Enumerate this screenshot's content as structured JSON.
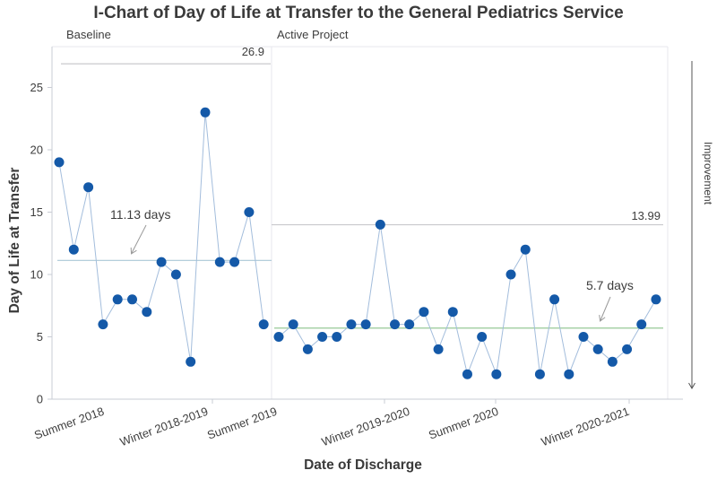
{
  "title": "I-Chart of Day of Life at Transfer to the General Pediatrics Service",
  "chart_data": {
    "type": "line",
    "subtype": "individuals-control-chart",
    "title": "I-Chart of Day of Life at Transfer to the General Pediatrics Service",
    "xlabel": "Date of Discharge",
    "ylabel": "Day of Life at Transfer",
    "ylim": [
      0,
      28.3
    ],
    "yticks": [
      0,
      5,
      10,
      15,
      20,
      25
    ],
    "x_tick_labels": [
      "Summer 2018",
      "Winter 2018-2019",
      "Summer 2019",
      "Winter 2019-2020",
      "Summer 2020",
      "Winter 2020-2021"
    ],
    "grid": false,
    "legend": null,
    "panels": [
      {
        "label": "Baseline",
        "values": [
          19,
          12,
          17,
          6,
          8,
          8,
          7,
          11,
          10,
          3,
          23,
          11,
          11,
          15,
          6
        ],
        "center_line": 11.13,
        "center_label": "11.13 days",
        "ucl": 26.9,
        "ucl_label": "26.9"
      },
      {
        "label": "Active Project",
        "values": [
          5,
          6,
          4,
          5,
          5,
          6,
          6,
          14,
          6,
          6,
          7,
          4,
          7,
          2,
          5,
          2,
          10,
          12,
          2,
          8,
          2,
          5,
          4,
          3,
          4,
          6,
          8
        ],
        "center_line": 5.7,
        "center_label": "5.7 days",
        "ucl": 13.99,
        "ucl_label": "13.99"
      }
    ],
    "annotations": {
      "improvement_label": "Improvement",
      "improvement_direction": "down"
    },
    "colors": {
      "point": "#1459a8",
      "series_line": "#a3bddc",
      "ucl_line": "#c9c9cd",
      "baseline_center_line": "#a9c7d6",
      "active_center_line": "#96c996",
      "axis": "#c9ccd4",
      "panel_border": "#e7e7ee",
      "text": "#3d3d3d",
      "annotation_arrow": "#999999",
      "improvement_arrow": "#555555"
    }
  }
}
